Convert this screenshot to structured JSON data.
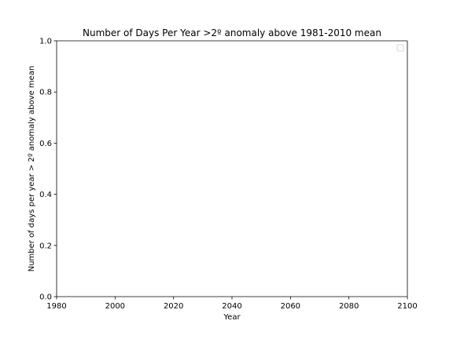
{
  "chart_data": {
    "type": "line",
    "title": "Number of Days Per Year >2º anomaly above 1981-2010 mean",
    "xlabel": "Year",
    "ylabel": "Number of days per year > 2º anomaly above mean",
    "xlim": [
      1980,
      2100
    ],
    "ylim": [
      0.0,
      1.0
    ],
    "x_ticks": [
      "1980",
      "2000",
      "2020",
      "2040",
      "2060",
      "2080",
      "2100"
    ],
    "y_ticks": [
      "0.0",
      "0.2",
      "0.4",
      "0.6",
      "0.8",
      "1.0"
    ],
    "series": [],
    "legend": {
      "placement": "upper-right",
      "entries": []
    },
    "grid": false
  }
}
